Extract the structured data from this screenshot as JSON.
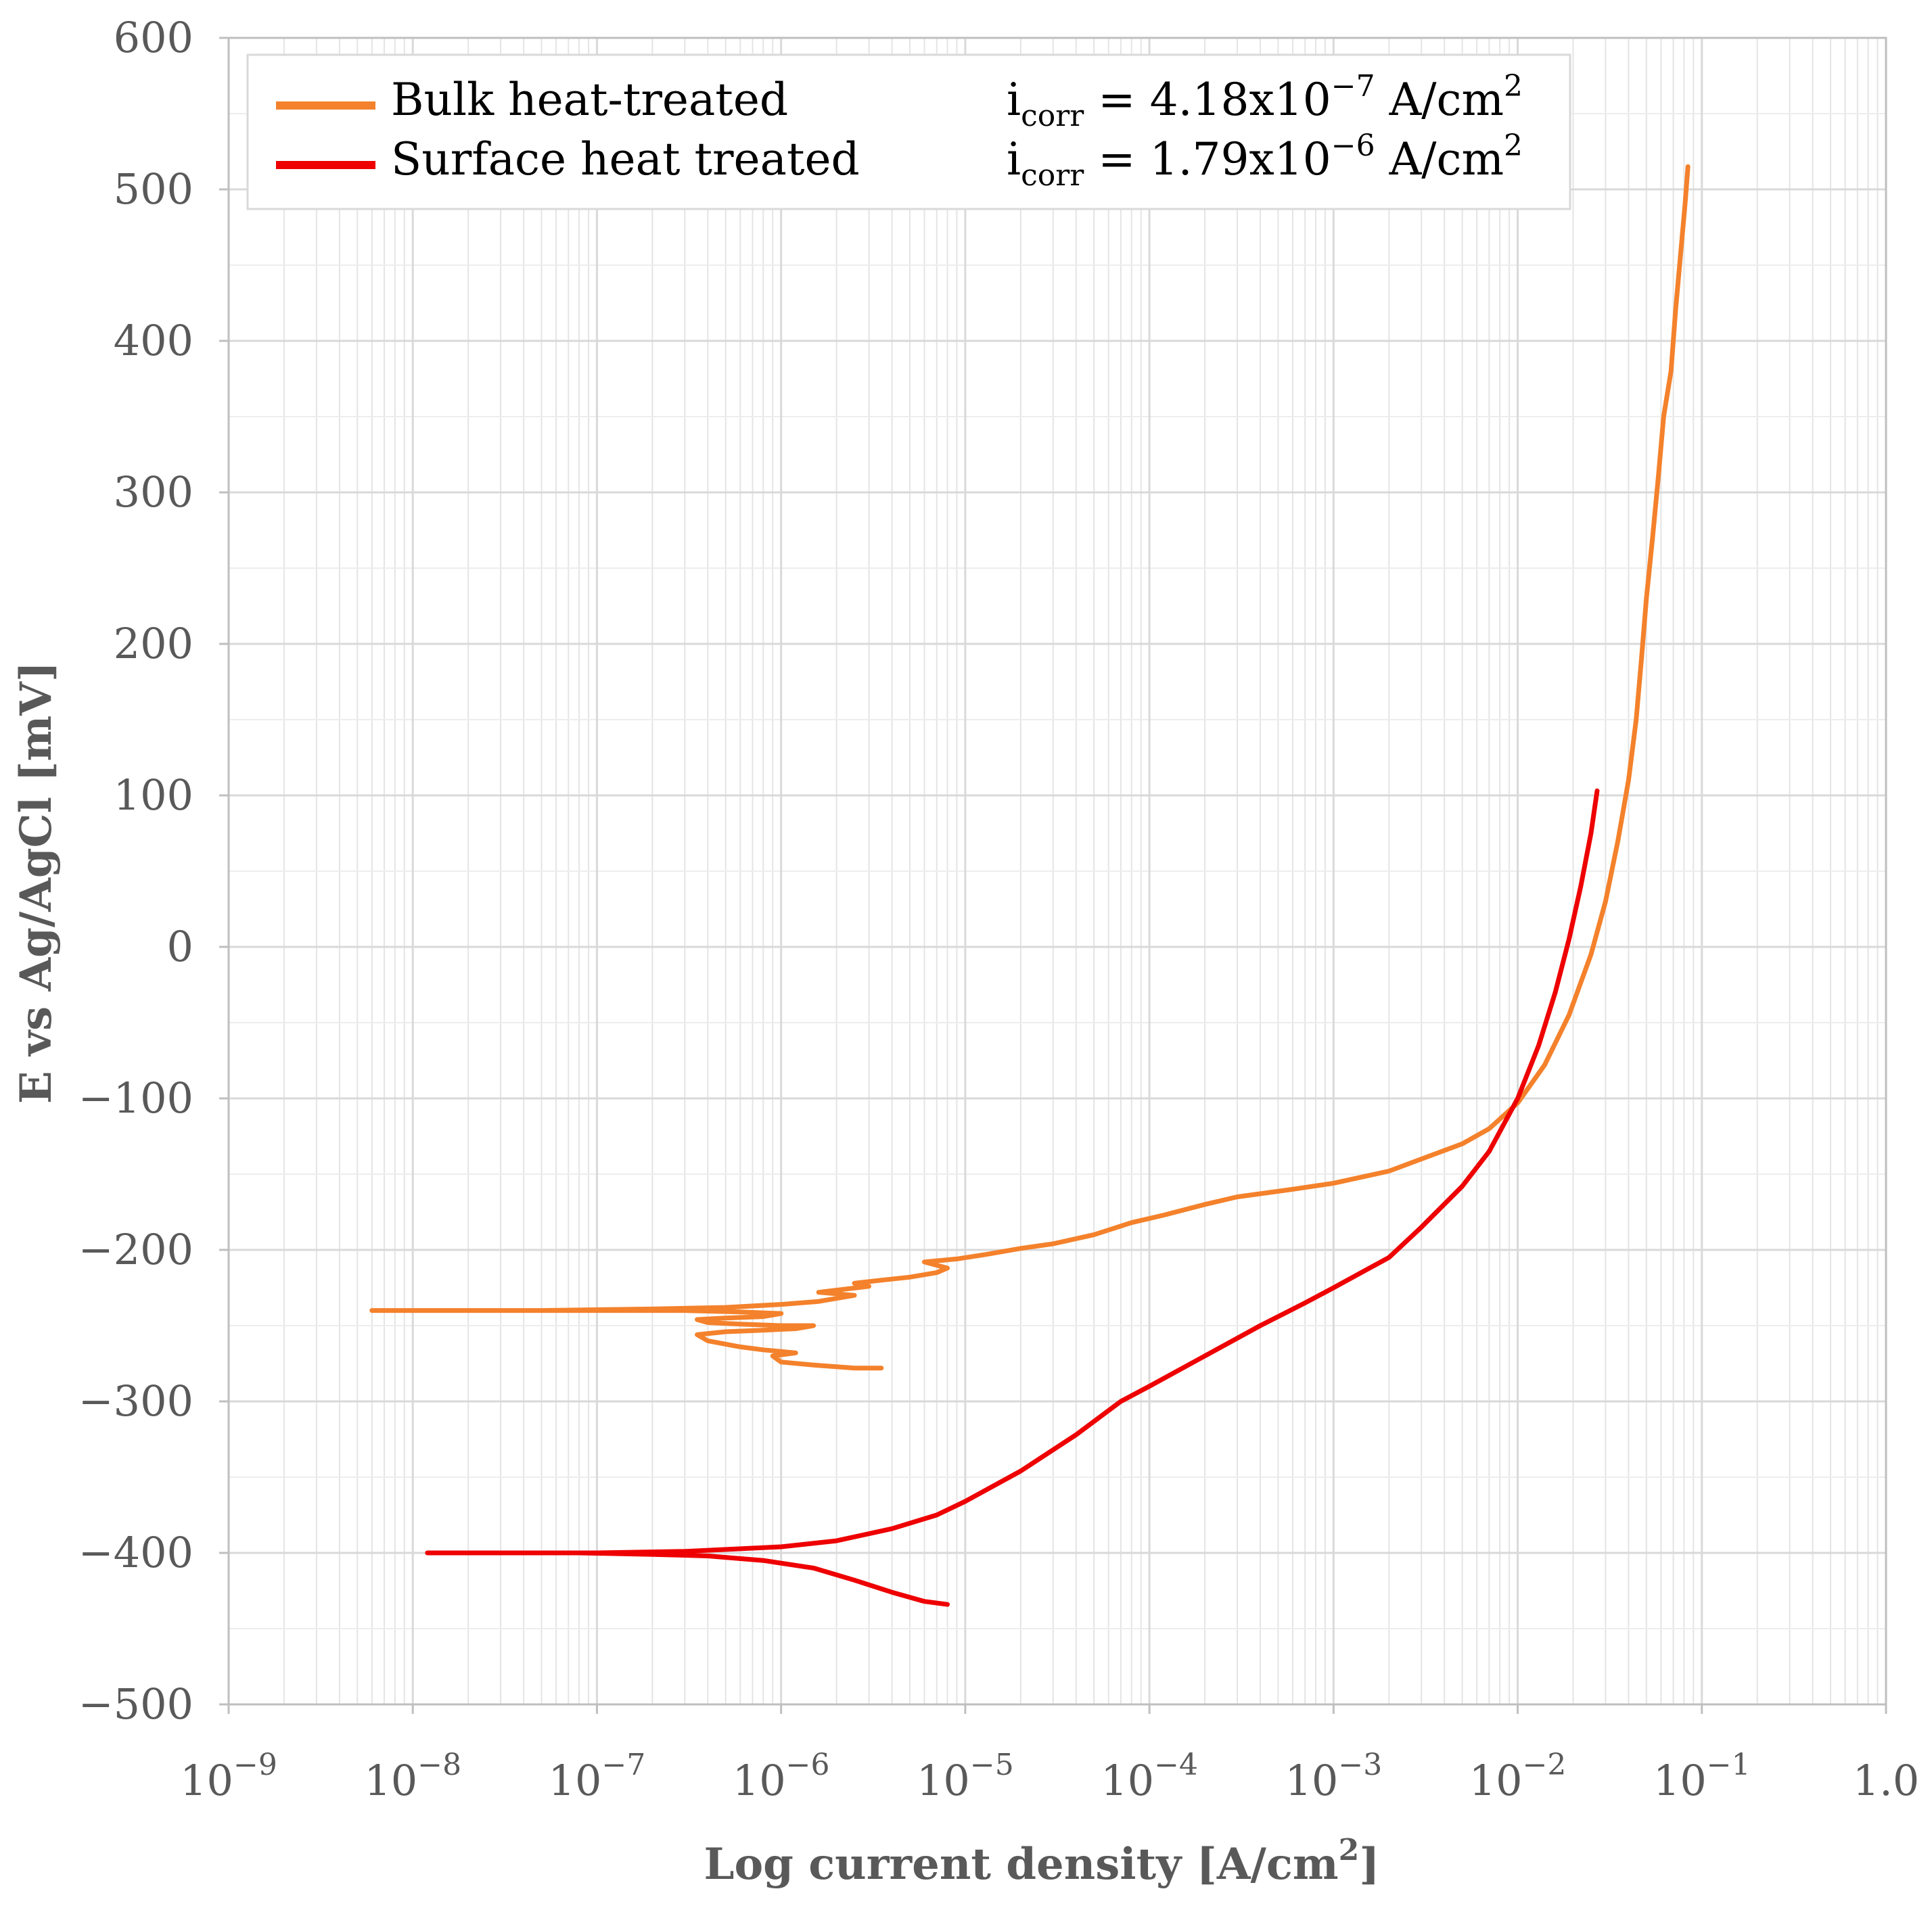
{
  "chart_data": {
    "type": "line",
    "x_scale": "log",
    "xlabel_main": "Log current density [A/cm",
    "xlabel_sup": "2",
    "xlabel_tail": "]",
    "ylabel": "E vs Ag/AgCl [mV]",
    "xlim": [
      1e-09,
      1.0
    ],
    "ylim": [
      -500,
      600
    ],
    "grid": true,
    "legend_position": "top-left",
    "x_ticks": [
      {
        "value": 1e-09,
        "base": "10",
        "exp": "−9"
      },
      {
        "value": 1e-08,
        "base": "10",
        "exp": "−8"
      },
      {
        "value": 1e-07,
        "base": "10",
        "exp": "−7"
      },
      {
        "value": 1e-06,
        "base": "10",
        "exp": "−6"
      },
      {
        "value": 1e-05,
        "base": "10",
        "exp": "−5"
      },
      {
        "value": 0.0001,
        "base": "10",
        "exp": "−4"
      },
      {
        "value": 0.001,
        "base": "10",
        "exp": "−3"
      },
      {
        "value": 0.01,
        "base": "10",
        "exp": "−2"
      },
      {
        "value": 0.1,
        "base": "10",
        "exp": "−1"
      },
      {
        "value": 1.0,
        "base": "1.0",
        "exp": ""
      }
    ],
    "y_ticks": [
      {
        "value": 600,
        "label": "600"
      },
      {
        "value": 500,
        "label": "500"
      },
      {
        "value": 400,
        "label": "400"
      },
      {
        "value": 300,
        "label": "300"
      },
      {
        "value": 200,
        "label": "200"
      },
      {
        "value": 100,
        "label": "100"
      },
      {
        "value": 0,
        "label": "0"
      },
      {
        "value": -100,
        "label": "−100"
      },
      {
        "value": -200,
        "label": "−200"
      },
      {
        "value": -300,
        "label": "−300"
      },
      {
        "value": -400,
        "label": "−400"
      },
      {
        "value": -500,
        "label": "−500"
      }
    ],
    "series": [
      {
        "name": "Bulk heat-treated",
        "color": "#F4812B",
        "annotation": {
          "prefix": "i",
          "sub": "corr",
          "eq": " = 4.18x10",
          "exp": "−7",
          "unit": " A/cm",
          "unit_exp": "2"
        },
        "points": [
          [
            3.5e-06,
            -278
          ],
          [
            2.5e-06,
            -278
          ],
          [
            1.5e-06,
            -276
          ],
          [
            1e-06,
            -274
          ],
          [
            9e-07,
            -270
          ],
          [
            1.2e-06,
            -268
          ],
          [
            8e-07,
            -266
          ],
          [
            6e-07,
            -264
          ],
          [
            4e-07,
            -260
          ],
          [
            3.5e-07,
            -256
          ],
          [
            5e-07,
            -254
          ],
          [
            8e-07,
            -253
          ],
          [
            1.2e-06,
            -252
          ],
          [
            1.5e-06,
            -250
          ],
          [
            1e-06,
            -250
          ],
          [
            6e-07,
            -249
          ],
          [
            4e-07,
            -248
          ],
          [
            3.5e-07,
            -246
          ],
          [
            5e-07,
            -245
          ],
          [
            8e-07,
            -244
          ],
          [
            1e-06,
            -242
          ],
          [
            6e-07,
            -241
          ],
          [
            3e-07,
            -240
          ],
          [
            1e-07,
            -240
          ],
          [
            3e-08,
            -240
          ],
          [
            1e-08,
            -240
          ],
          [
            6e-09,
            -240
          ],
          [
            1e-08,
            -240
          ],
          [
            5e-08,
            -240
          ],
          [
            2e-07,
            -239
          ],
          [
            5e-07,
            -238
          ],
          [
            1e-06,
            -236
          ],
          [
            1.6e-06,
            -234
          ],
          [
            2e-06,
            -232
          ],
          [
            2.5e-06,
            -230
          ],
          [
            1.6e-06,
            -228
          ],
          [
            2.2e-06,
            -226
          ],
          [
            3e-06,
            -224
          ],
          [
            2.5e-06,
            -222
          ],
          [
            3.5e-06,
            -220
          ],
          [
            5e-06,
            -218
          ],
          [
            7e-06,
            -215
          ],
          [
            8e-06,
            -212
          ],
          [
            6e-06,
            -208
          ],
          [
            9e-06,
            -206
          ],
          [
            1.3e-05,
            -203
          ],
          [
            2e-05,
            -199
          ],
          [
            3e-05,
            -196
          ],
          [
            5e-05,
            -190
          ],
          [
            8e-05,
            -182
          ],
          [
            0.00012,
            -177
          ],
          [
            0.0002,
            -170
          ],
          [
            0.0003,
            -165
          ],
          [
            0.0006,
            -160
          ],
          [
            0.001,
            -156
          ],
          [
            0.002,
            -148
          ],
          [
            0.003,
            -140
          ],
          [
            0.005,
            -130
          ],
          [
            0.007,
            -120
          ],
          [
            0.01,
            -103
          ],
          [
            0.014,
            -78
          ],
          [
            0.019,
            -45
          ],
          [
            0.025,
            -5
          ],
          [
            0.03,
            30
          ],
          [
            0.035,
            70
          ],
          [
            0.04,
            110
          ],
          [
            0.044,
            150
          ],
          [
            0.047,
            190
          ],
          [
            0.05,
            230
          ],
          [
            0.054,
            270
          ],
          [
            0.058,
            310
          ],
          [
            0.062,
            350
          ],
          [
            0.068,
            380
          ],
          [
            0.072,
            420
          ],
          [
            0.077,
            460
          ],
          [
            0.081,
            490
          ],
          [
            0.084,
            515
          ]
        ]
      },
      {
        "name": "Surface heat treated",
        "color": "#EE0000",
        "annotation": {
          "prefix": "i",
          "sub": "corr",
          "eq": " = 1.79x10",
          "exp": "−6",
          "unit": " A/cm",
          "unit_exp": "2"
        },
        "points": [
          [
            8e-06,
            -434
          ],
          [
            6e-06,
            -432
          ],
          [
            4e-06,
            -426
          ],
          [
            2.5e-06,
            -418
          ],
          [
            1.5e-06,
            -410
          ],
          [
            8e-07,
            -405
          ],
          [
            4e-07,
            -402
          ],
          [
            2e-07,
            -401
          ],
          [
            8e-08,
            -400
          ],
          [
            3e-08,
            -400
          ],
          [
            1.2e-08,
            -400
          ],
          [
            3e-08,
            -400
          ],
          [
            1e-07,
            -400
          ],
          [
            3e-07,
            -399
          ],
          [
            1e-06,
            -396
          ],
          [
            2e-06,
            -392
          ],
          [
            4e-06,
            -384
          ],
          [
            7e-06,
            -375
          ],
          [
            1e-05,
            -366
          ],
          [
            2e-05,
            -346
          ],
          [
            4e-05,
            -322
          ],
          [
            7e-05,
            -300
          ],
          [
            0.0001,
            -290
          ],
          [
            0.0002,
            -270
          ],
          [
            0.0004,
            -250
          ],
          [
            0.0007,
            -235
          ],
          [
            0.001,
            -225
          ],
          [
            0.002,
            -205
          ],
          [
            0.003,
            -185
          ],
          [
            0.005,
            -158
          ],
          [
            0.007,
            -135
          ],
          [
            0.01,
            -100
          ],
          [
            0.013,
            -65
          ],
          [
            0.016,
            -30
          ],
          [
            0.019,
            5
          ],
          [
            0.022,
            40
          ],
          [
            0.025,
            75
          ],
          [
            0.027,
            103
          ]
        ]
      }
    ]
  }
}
